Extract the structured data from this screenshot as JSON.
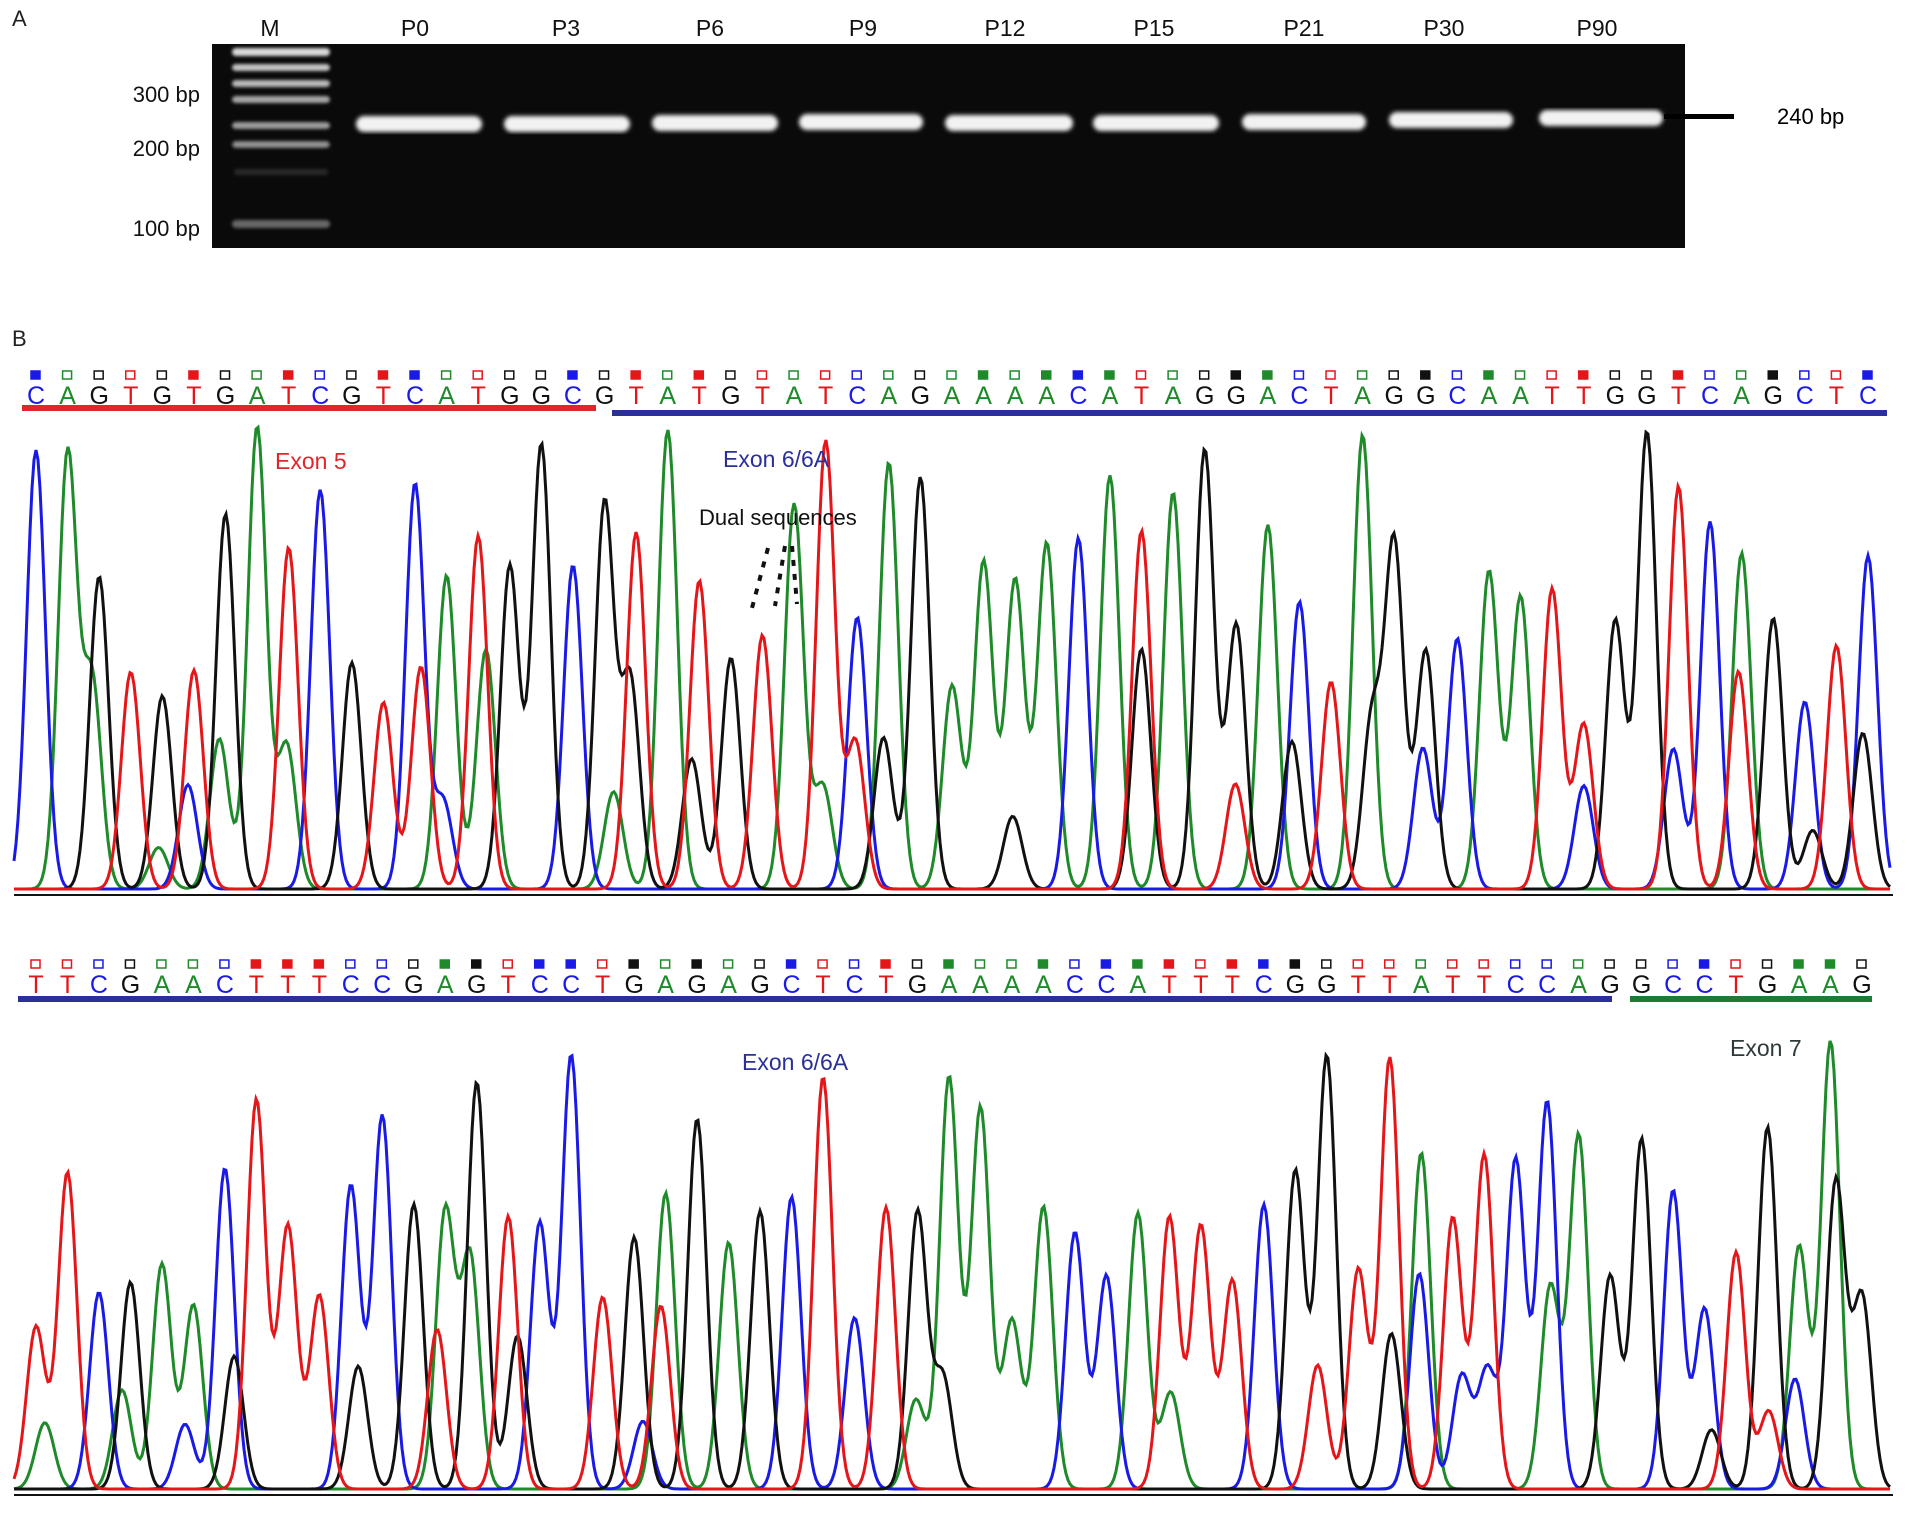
{
  "panel_a": {
    "label": "A",
    "lanes": [
      "M",
      "P0",
      "P3",
      "P6",
      "P9",
      "P12",
      "P15",
      "P21",
      "P30",
      "P90"
    ],
    "ladder_labels": [
      "300 bp",
      "200 bp",
      "100 bp"
    ],
    "band_label": "240 bp"
  },
  "panel_b": {
    "label": "B",
    "annotation": "Dual sequences",
    "row1": {
      "sequence": "CAGTGTGATCGTCATGGCGTATGTATCAGAAAACATAGGACTAGGCAATTGGTCAGCTC",
      "regions": [
        {
          "label": "Exon 5",
          "color": "#e0262a"
        },
        {
          "label": "Exon 6/6A",
          "color": "#2a2f9a"
        }
      ]
    },
    "row2": {
      "sequence": "TTCGAACTTTCCGAGTCCTGAGAGCTCTGAAAACCATTTCGGTTATTCCAGGCCTGAAG",
      "regions": [
        {
          "label": "Exon 6/6A",
          "color": "#2a2f9a"
        },
        {
          "label": "Exon 7",
          "color": "#1f7a35"
        }
      ]
    }
  },
  "colors": {
    "A": "#1f8a2a",
    "C": "#1a1ae6",
    "G": "#111111",
    "T": "#e4161a",
    "gel": "#0a0a0a",
    "band": "#f4f4f4"
  }
}
